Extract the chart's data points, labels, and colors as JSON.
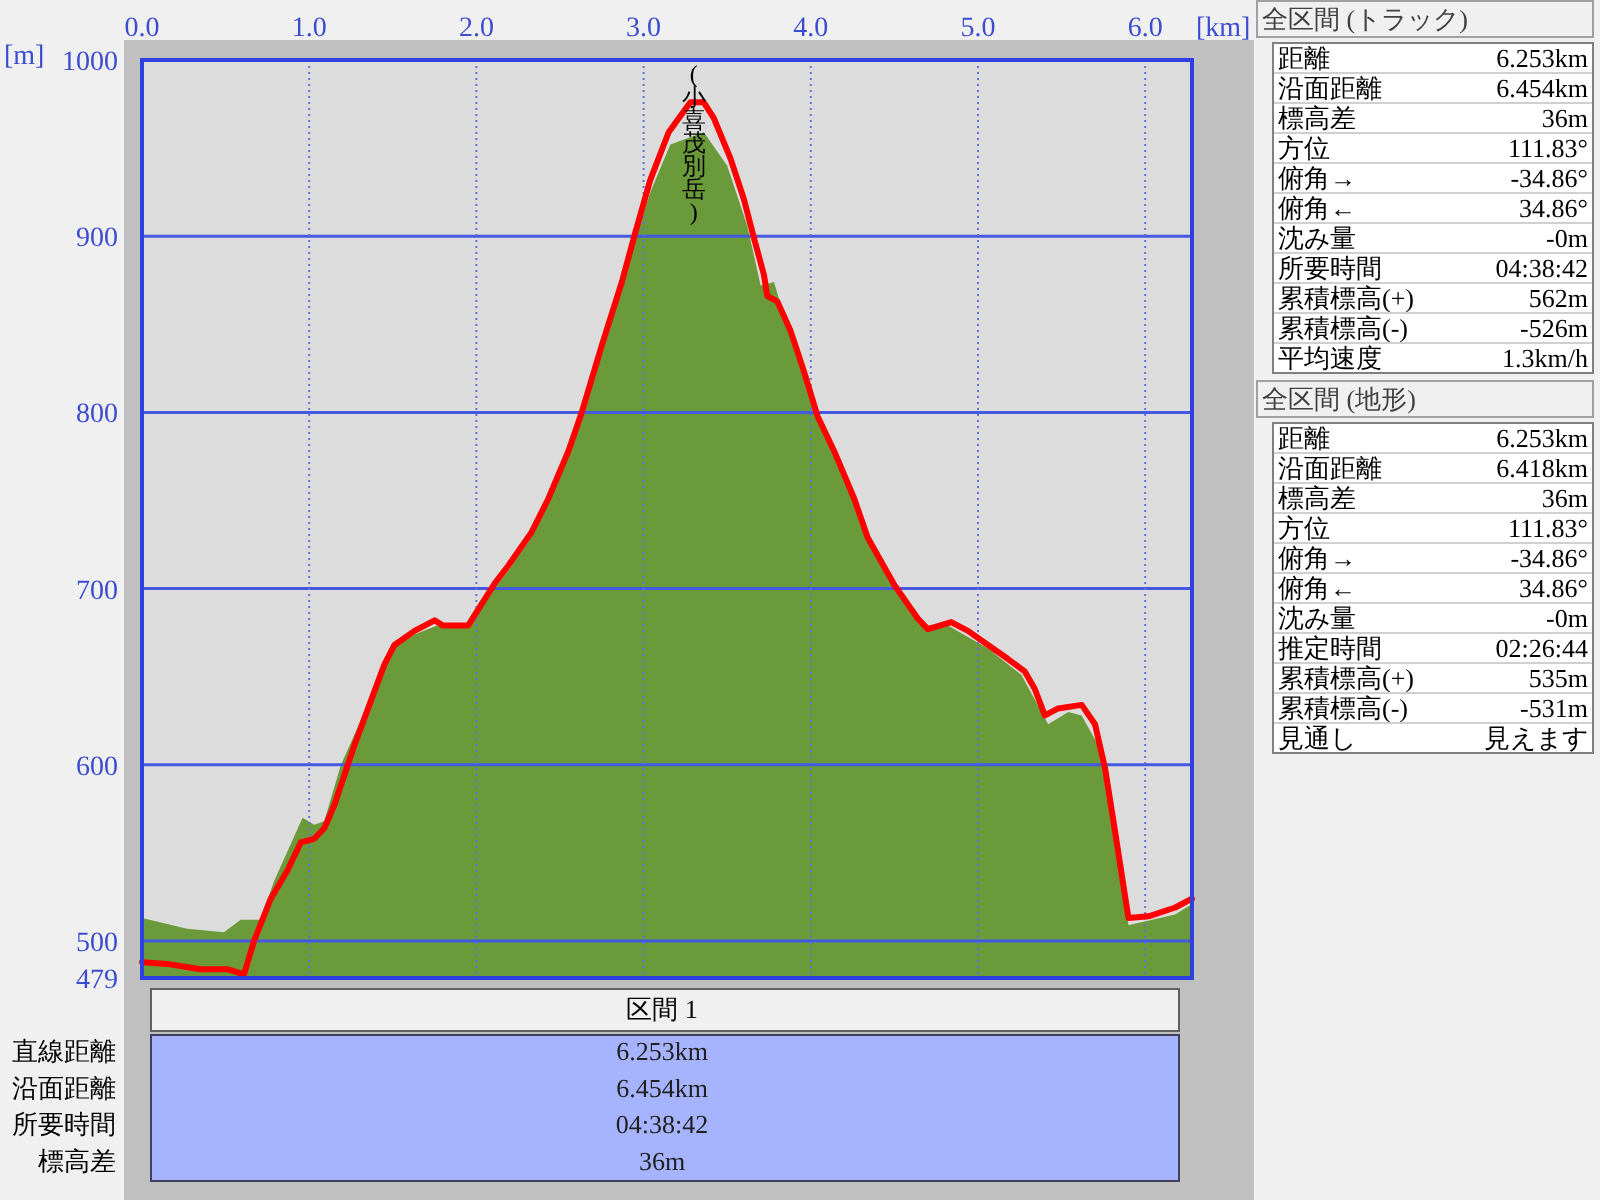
{
  "chart_data": [
    {
      "type": "area",
      "xlabel": "[km]",
      "ylabel": "[m]",
      "xlim": [
        0,
        6.28
      ],
      "ylim": [
        479,
        1000
      ],
      "xticks": [
        {
          "value": 0,
          "label": "0.0"
        },
        {
          "value": 1,
          "label": "1.0"
        },
        {
          "value": 2,
          "label": "2.0"
        },
        {
          "value": 3,
          "label": "3.0"
        },
        {
          "value": 4,
          "label": "4.0"
        },
        {
          "value": 5,
          "label": "5.0"
        },
        {
          "value": 6,
          "label": "6.0"
        }
      ],
      "yticks": [
        479,
        500,
        600,
        700,
        800,
        900,
        1000
      ],
      "grid": true,
      "series": [
        {
          "type": "area",
          "color": "#6a9a3a",
          "x": [
            0,
            0.27,
            0.49,
            0.59,
            0.71,
            0.79,
            0.89,
            0.96,
            1.03,
            1.09,
            1.19,
            1.35,
            1.47,
            1.63,
            1.79,
            1.95,
            2.03,
            2.11,
            2.19,
            2.33,
            2.43,
            2.55,
            2.63,
            2.75,
            2.87,
            2.95,
            3.04,
            3.16,
            3.36,
            3.5,
            3.62,
            3.7,
            3.78,
            3.82,
            3.88,
            3.96,
            4.04,
            4.14,
            4.26,
            4.34,
            4.5,
            4.66,
            4.82,
            5.06,
            5.26,
            5.42,
            5.54,
            5.62,
            5.72,
            5.78,
            5.9,
            6.18,
            6.28
          ],
          "values": [
            513,
            507,
            505,
            512,
            512,
            534,
            555,
            570,
            566,
            568,
            600,
            634,
            664,
            674,
            680,
            679,
            689,
            700,
            710,
            729,
            748,
            775,
            797,
            835,
            870,
            898,
            925,
            952,
            959,
            940,
            906,
            872,
            874,
            861,
            843,
            820,
            796,
            775,
            748,
            726,
            700,
            679,
            679,
            666,
            651,
            623,
            630,
            628,
            611,
            581,
            509,
            515,
            521
          ]
        },
        {
          "type": "line",
          "color": "#ff0000",
          "x": [
            0,
            0.15,
            0.35,
            0.51,
            0.61,
            0.67,
            0.77,
            0.87,
            0.95,
            1.03,
            1.09,
            1.15,
            1.27,
            1.45,
            1.51,
            1.63,
            1.75,
            1.8,
            1.95,
            2.03,
            2.11,
            2.19,
            2.33,
            2.43,
            2.55,
            2.63,
            2.75,
            2.87,
            2.95,
            3.04,
            3.15,
            3.28,
            3.36,
            3.42,
            3.52,
            3.6,
            3.66,
            3.72,
            3.74,
            3.8,
            3.88,
            3.96,
            4.04,
            4.14,
            4.26,
            4.34,
            4.5,
            4.64,
            4.7,
            4.84,
            4.94,
            5.06,
            5.18,
            5.28,
            5.34,
            5.4,
            5.48,
            5.62,
            5.7,
            5.76,
            5.82,
            5.9,
            6.02,
            6.18,
            6.28
          ],
          "values": [
            488,
            487,
            484,
            484,
            481,
            500,
            524,
            540,
            556,
            558,
            564,
            577,
            611,
            657,
            668,
            676,
            682,
            679,
            679,
            691,
            703,
            713,
            732,
            751,
            778,
            800,
            838,
            874,
            902,
            932,
            959,
            976,
            976,
            967,
            944,
            921,
            899,
            878,
            866,
            863,
            846,
            823,
            798,
            778,
            751,
            729,
            702,
            683,
            677,
            681,
            676,
            668,
            660,
            653,
            643,
            628,
            632,
            634,
            623,
            598,
            562,
            513,
            514,
            519,
            524
          ]
        }
      ],
      "annotations": [
        {
          "text": "(小喜茂別岳)",
          "x": 3.3,
          "y": 976
        }
      ]
    },
    {
      "type": "other",
      "title": "全区間 (トラック)",
      "annotations": [
        "距離",
        "6.253km",
        "沿面距離",
        "6.454km",
        "標高差",
        "36m",
        "方位",
        "111.83°",
        "俯角→",
        "-34.86°",
        "俯角←",
        "34.86°",
        "沈み量",
        "-0m",
        "所要時間",
        "04:38:42",
        "累積標高(+)",
        "562m",
        "累積標高(-)",
        "-526m",
        "平均速度",
        "1.3km/h"
      ]
    },
    {
      "type": "other",
      "title": "全区間 (地形)",
      "annotations": [
        "距離",
        "6.253km",
        "沿面距離",
        "6.418km",
        "標高差",
        "36m",
        "方位",
        "111.83°",
        "俯角→",
        "-34.86°",
        "俯角←",
        "34.86°",
        "沈み量",
        "-0m",
        "推定時間",
        "02:26:44",
        "累積標高(+)",
        "535m",
        "累積標高(-)",
        "-531m",
        "見通し",
        "見えます"
      ]
    },
    {
      "type": "other",
      "title": "区間 1",
      "annotations": [
        "直線距離",
        "6.253km",
        "沿面距離",
        "6.454km",
        "所要時間",
        "04:38:42",
        "標高差",
        "36m"
      ]
    }
  ]
}
